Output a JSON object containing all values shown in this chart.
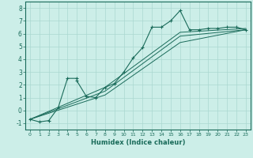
{
  "xlabel": "Humidex (Indice chaleur)",
  "background_color": "#cceee8",
  "grid_color": "#aad8d0",
  "line_color": "#1a6b5a",
  "xlim": [
    -0.5,
    23.5
  ],
  "ylim": [
    -1.5,
    8.5
  ],
  "xticks": [
    0,
    1,
    2,
    3,
    4,
    5,
    6,
    7,
    8,
    9,
    10,
    11,
    12,
    13,
    14,
    15,
    16,
    17,
    18,
    19,
    20,
    21,
    22,
    23
  ],
  "yticks": [
    -1,
    0,
    1,
    2,
    3,
    4,
    5,
    6,
    7,
    8
  ],
  "series1_x": [
    0,
    1,
    2,
    3,
    4,
    5,
    5,
    6,
    7,
    8,
    9,
    10,
    11,
    12,
    13,
    14,
    15,
    16,
    17,
    18,
    19,
    20,
    21,
    22,
    23
  ],
  "series1_y": [
    -0.7,
    -0.9,
    -0.8,
    0.2,
    2.5,
    2.5,
    2.3,
    1.1,
    1.0,
    1.8,
    2.1,
    3.0,
    4.1,
    4.9,
    6.5,
    6.5,
    7.0,
    7.8,
    6.3,
    6.3,
    6.4,
    6.4,
    6.5,
    6.5,
    6.3
  ],
  "series2_x": [
    0,
    8,
    16,
    23
  ],
  "series2_y": [
    -0.7,
    1.5,
    5.8,
    6.3
  ],
  "series3_x": [
    0,
    8,
    16,
    23
  ],
  "series3_y": [
    -0.7,
    1.8,
    6.1,
    6.4
  ],
  "series4_x": [
    0,
    8,
    16,
    23
  ],
  "series4_y": [
    -0.7,
    1.2,
    5.3,
    6.3
  ]
}
